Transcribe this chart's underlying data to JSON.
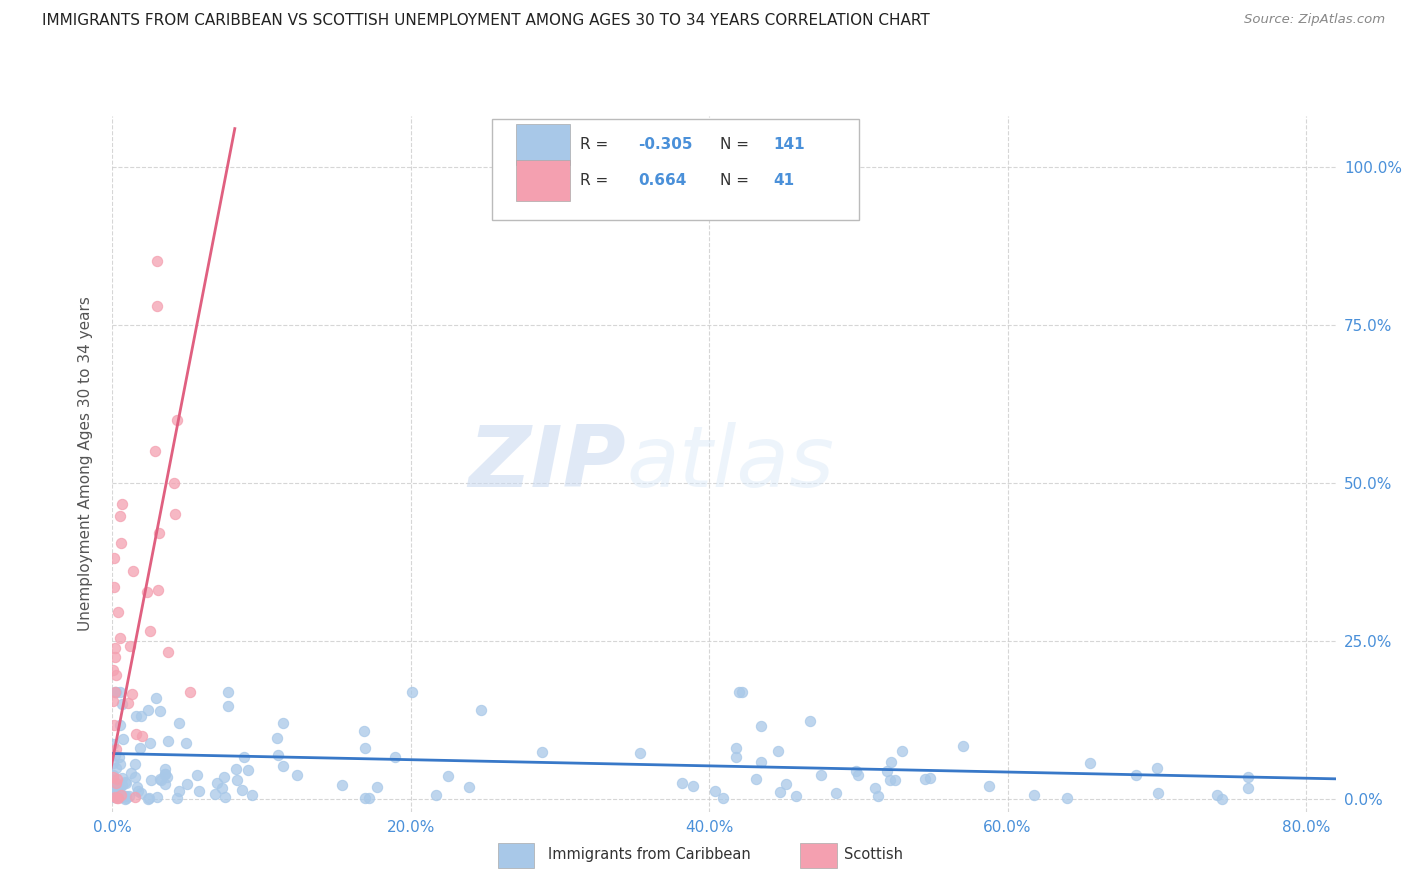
{
  "title": "IMMIGRANTS FROM CARIBBEAN VS SCOTTISH UNEMPLOYMENT AMONG AGES 30 TO 34 YEARS CORRELATION CHART",
  "source": "Source: ZipAtlas.com",
  "ylabel": "Unemployment Among Ages 30 to 34 years",
  "watermark_zip": "ZIP",
  "watermark_atlas": "atlas",
  "blue_color": "#a8c8e8",
  "pink_color": "#f4a0b0",
  "blue_line_color": "#3878c8",
  "pink_line_color": "#e06080",
  "background_color": "#ffffff",
  "grid_color": "#cccccc",
  "title_color": "#222222",
  "axis_label_color": "#555555",
  "tick_color": "#4a90d9",
  "legend_r1": "-0.305",
  "legend_n1": "141",
  "legend_r2": "0.664",
  "legend_n2": "41",
  "xlim": [
    0.0,
    0.82
  ],
  "ylim": [
    -0.02,
    1.08
  ],
  "x_tick_vals": [
    0.0,
    0.2,
    0.4,
    0.6,
    0.8
  ],
  "x_tick_labels": [
    "0.0%",
    "20.0%",
    "40.0%",
    "60.0%",
    "80.0%"
  ],
  "y_tick_vals": [
    0.0,
    0.25,
    0.5,
    0.75,
    1.0
  ],
  "y_tick_labels": [
    "0.0%",
    "25.0%",
    "50.0%",
    "75.0%",
    "100.0%"
  ]
}
